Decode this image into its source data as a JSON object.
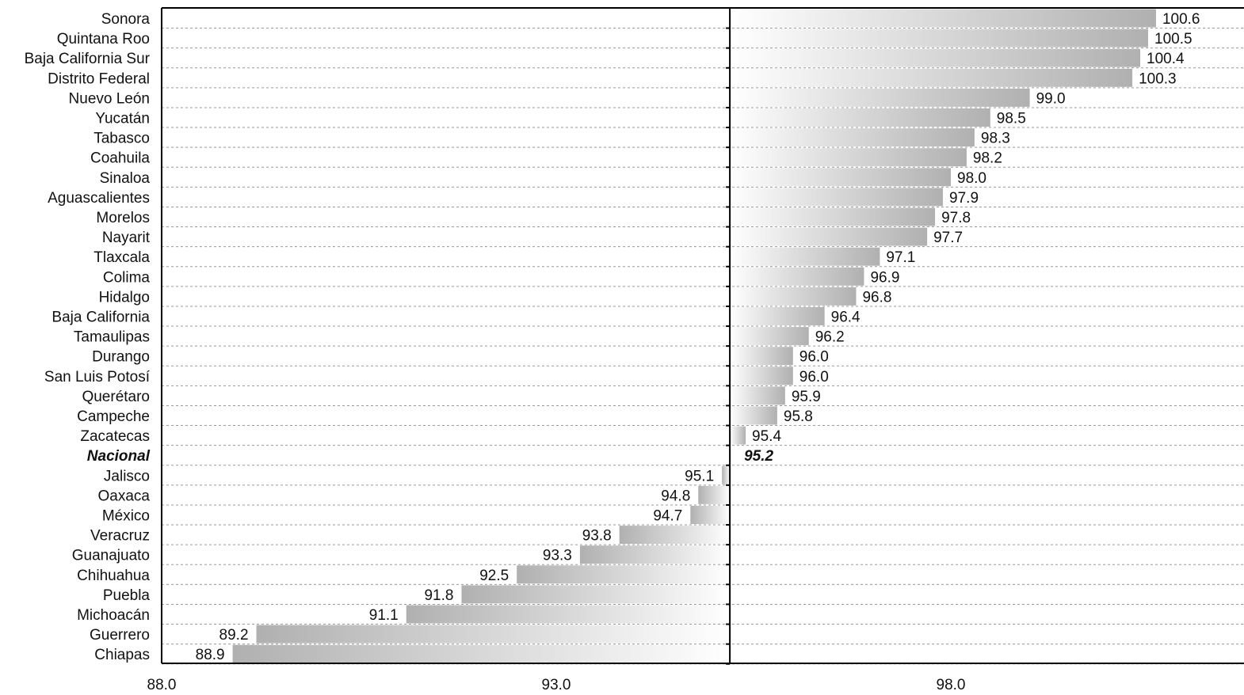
{
  "chart_data": {
    "type": "bar",
    "orientation": "horizontal",
    "baseline": 95.2,
    "xlim": [
      88.0,
      102.0
    ],
    "xticks": [
      "88.0",
      "93.0",
      "98.0"
    ],
    "xtick_values": [
      88.0,
      93.0,
      98.0
    ],
    "grid": "dotted horizontal",
    "highlight": "Nacional",
    "categories": [
      "Sonora",
      "Quintana Roo",
      "Baja California Sur",
      "Distrito Federal",
      "Nuevo León",
      "Yucatán",
      "Tabasco",
      "Coahuila",
      "Sinaloa",
      "Aguascalientes",
      "Morelos",
      "Nayarit",
      "Tlaxcala",
      "Colima",
      "Hidalgo",
      "Baja California",
      "Tamaulipas",
      "Durango",
      "San Luis Potosí",
      "Querétaro",
      "Campeche",
      "Zacatecas",
      "Nacional",
      "Jalisco",
      "Oaxaca",
      "México",
      "Veracruz",
      "Guanajuato",
      "Chihuahua",
      "Puebla",
      "Michoacán",
      "Guerrero",
      "Chiapas"
    ],
    "values": [
      100.6,
      100.5,
      100.4,
      100.3,
      99.0,
      98.5,
      98.3,
      98.2,
      98.0,
      97.9,
      97.8,
      97.7,
      97.1,
      96.9,
      96.8,
      96.4,
      96.2,
      96.0,
      96.0,
      95.9,
      95.8,
      95.4,
      95.2,
      95.1,
      94.8,
      94.7,
      93.8,
      93.3,
      92.5,
      91.8,
      91.1,
      89.2,
      88.9
    ],
    "value_labels": [
      "100.6",
      "100.5",
      "100.4",
      "100.3",
      "99.0",
      "98.5",
      "98.3",
      "98.2",
      "98.0",
      "97.9",
      "97.8",
      "97.7",
      "97.1",
      "96.9",
      "96.8",
      "96.4",
      "96.2",
      "96.0",
      "96.0",
      "95.9",
      "95.8",
      "95.4",
      "95.2",
      "95.1",
      "94.8",
      "94.7",
      "93.8",
      "93.3",
      "92.5",
      "91.8",
      "91.1",
      "89.2",
      "88.9"
    ],
    "colors": {
      "bar_dark": "#b0b0b0",
      "bar_light": "#ffffff",
      "axis": "#000000",
      "grid": "#9a9a9a"
    }
  }
}
